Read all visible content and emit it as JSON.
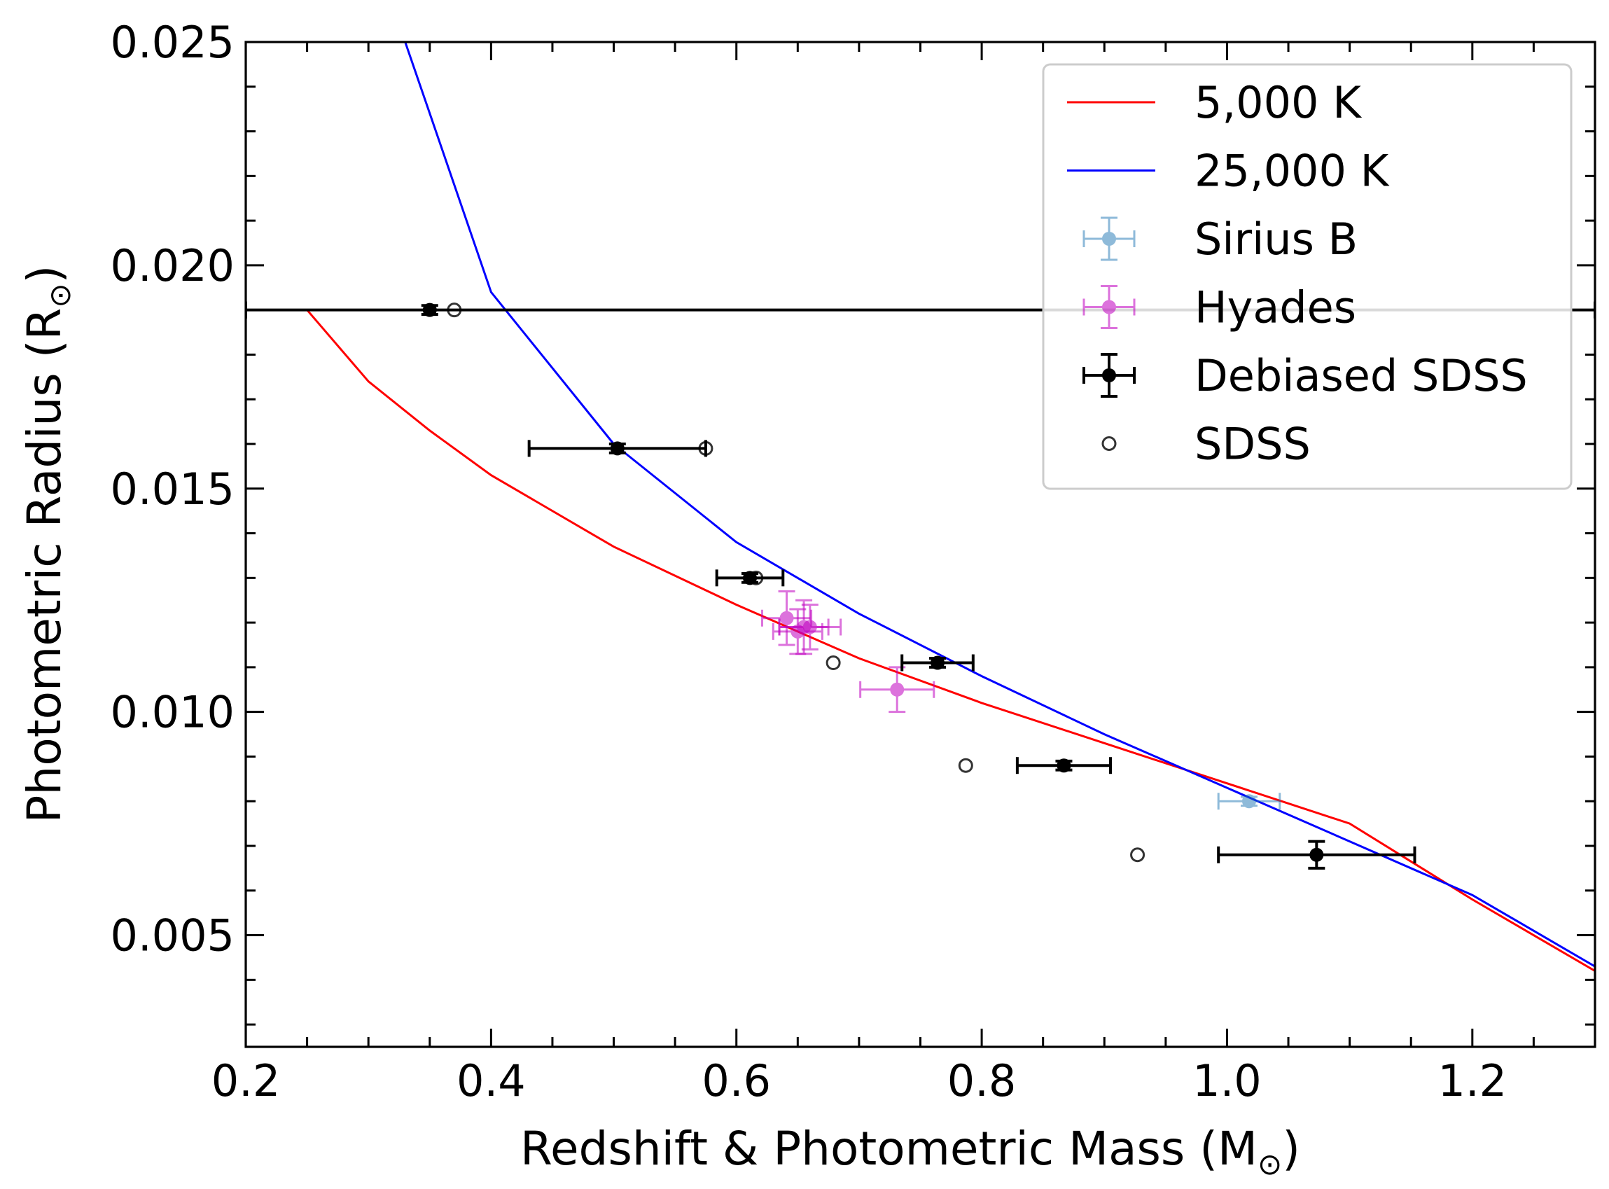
{
  "chart_data": {
    "type": "scatter",
    "xlabel": "Redshift & Photometric Mass (M",
    "xlabel_sub": "⊙",
    "xlabel_close": ")",
    "ylabel": "Photometric Radius (R",
    "ylabel_sub": "⊙",
    "ylabel_close": ")",
    "xlim": [
      0.2,
      1.3
    ],
    "ylim": [
      0.0025,
      0.025
    ],
    "xticks": [
      {
        "value": 0.2,
        "label": "0.2"
      },
      {
        "value": 0.4,
        "label": "0.4"
      },
      {
        "value": 0.6,
        "label": "0.6"
      },
      {
        "value": 0.8,
        "label": "0.8"
      },
      {
        "value": 1.0,
        "label": "1.0"
      },
      {
        "value": 1.2,
        "label": "1.2"
      }
    ],
    "yticks": [
      {
        "value": 0.005,
        "label": "0.005"
      },
      {
        "value": 0.01,
        "label": "0.010"
      },
      {
        "value": 0.015,
        "label": "0.015"
      },
      {
        "value": 0.02,
        "label": "0.020"
      },
      {
        "value": 0.025,
        "label": "0.025"
      }
    ],
    "x_minor_step": 0.05,
    "y_minor_step": 0.001,
    "grid": false,
    "legend_position": "top-right",
    "lines": [
      {
        "name": "5,000 K",
        "color": "#ff0000",
        "x": [
          0.25,
          0.3,
          0.35,
          0.4,
          0.5,
          0.6,
          0.7,
          0.8,
          0.9,
          1.0,
          1.1,
          1.2,
          1.25,
          1.3
        ],
        "y": [
          0.019,
          0.0174,
          0.0163,
          0.0153,
          0.0137,
          0.0124,
          0.0112,
          0.0102,
          0.0093,
          0.0084,
          0.0075,
          0.0058,
          0.005,
          0.0042
        ]
      },
      {
        "name": "25,000 K",
        "color": "#0000ff",
        "x": [
          0.33,
          0.35,
          0.4,
          0.5,
          0.6,
          0.7,
          0.8,
          0.9,
          1.0,
          1.1,
          1.2,
          1.25,
          1.3
        ],
        "y": [
          0.025,
          0.0234,
          0.0194,
          0.016,
          0.0138,
          0.0122,
          0.0108,
          0.0095,
          0.0083,
          0.0071,
          0.0059,
          0.0051,
          0.0043
        ]
      }
    ],
    "series": [
      {
        "name": "Sirius B",
        "color": "#1f77b4",
        "points": [
          {
            "x": 1.018,
            "y": 0.008,
            "xerr": 0.025,
            "yerr": 0.0001
          }
        ]
      },
      {
        "name": "Hyades",
        "color": "#c000c0",
        "points": [
          {
            "x": 0.641,
            "y": 0.0121,
            "xerr": 0.02,
            "yerr": 0.0006
          },
          {
            "x": 0.65,
            "y": 0.0118,
            "xerr": 0.02,
            "yerr": 0.0005
          },
          {
            "x": 0.655,
            "y": 0.0119,
            "xerr": 0.02,
            "yerr": 0.0006
          },
          {
            "x": 0.66,
            "y": 0.0119,
            "xerr": 0.025,
            "yerr": 0.0005
          },
          {
            "x": 0.731,
            "y": 0.0105,
            "xerr": 0.03,
            "yerr": 0.0005
          }
        ]
      },
      {
        "name": "Debiased SDSS",
        "color": "#000000",
        "points": [
          {
            "x": 0.35,
            "y": 0.019,
            "xerr_minus": 0.15,
            "xerr_plus": 0.95,
            "yerr": 0.0001
          },
          {
            "x": 0.503,
            "y": 0.0159,
            "xerr": 0.072,
            "yerr": 0.0001
          },
          {
            "x": 0.611,
            "y": 0.013,
            "xerr": 0.027,
            "yerr": 0.0001
          },
          {
            "x": 0.764,
            "y": 0.0111,
            "xerr": 0.029,
            "yerr": 0.0001
          },
          {
            "x": 0.867,
            "y": 0.0088,
            "xerr": 0.038,
            "yerr": 0.0001
          },
          {
            "x": 1.073,
            "y": 0.0068,
            "xerr": 0.08,
            "yerr": 0.0003
          }
        ]
      },
      {
        "name": "SDSS",
        "color": "#000000",
        "points": [
          {
            "x": 0.37,
            "y": 0.019
          },
          {
            "x": 0.575,
            "y": 0.0159
          },
          {
            "x": 0.616,
            "y": 0.013
          },
          {
            "x": 0.679,
            "y": 0.0111
          },
          {
            "x": 0.787,
            "y": 0.0088
          },
          {
            "x": 0.927,
            "y": 0.0068
          }
        ]
      }
    ],
    "legend": [
      {
        "label": "5,000 K",
        "kind": "line",
        "color": "#ff0000"
      },
      {
        "label": "25,000 K",
        "kind": "line",
        "color": "#0000ff"
      },
      {
        "label": "Sirius B",
        "kind": "errorbar",
        "color": "#1f77b4"
      },
      {
        "label": "Hyades",
        "kind": "errorbar",
        "color": "#c000c0"
      },
      {
        "label": "Debiased SDSS",
        "kind": "errorbar",
        "color": "#000000"
      },
      {
        "label": "SDSS",
        "kind": "open-circle",
        "color": "#000000"
      }
    ]
  }
}
